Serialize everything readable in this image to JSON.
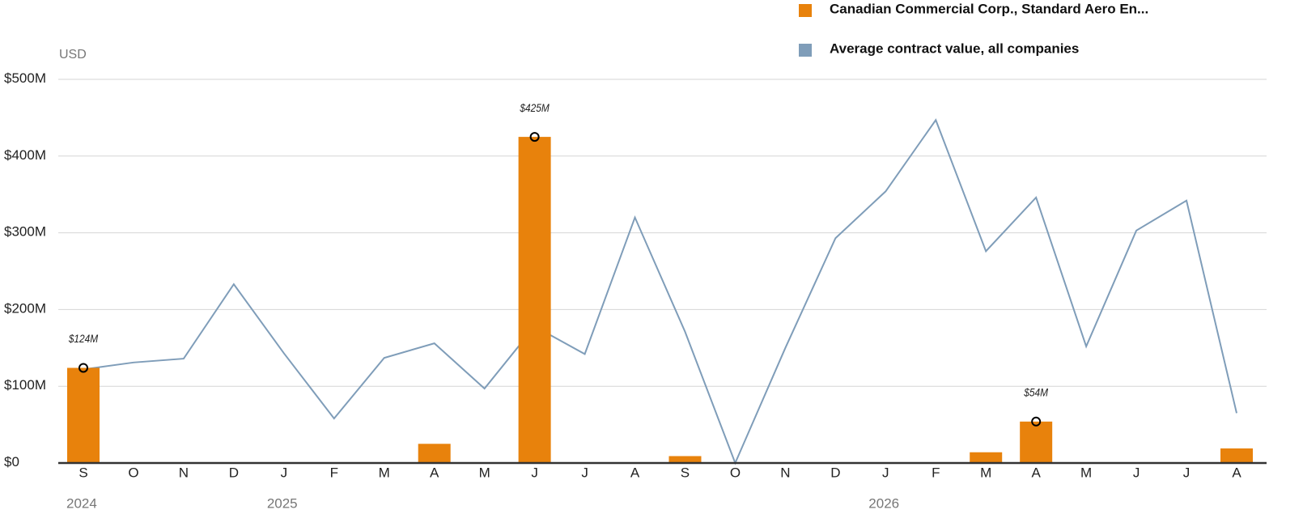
{
  "chart_data": {
    "type": "bar_line",
    "y_unit_label": "USD",
    "categories": [
      "S",
      "O",
      "N",
      "D",
      "J",
      "F",
      "M",
      "A",
      "M",
      "J",
      "J",
      "A",
      "S",
      "O",
      "N",
      "D",
      "J",
      "F",
      "M",
      "A",
      "M",
      "J",
      "J",
      "A"
    ],
    "years": [
      "2024",
      null,
      null,
      null,
      "2025",
      null,
      null,
      null,
      null,
      null,
      null,
      null,
      null,
      null,
      null,
      null,
      "2026",
      null,
      null,
      null,
      null,
      null,
      null,
      null
    ],
    "series": [
      {
        "name": "Canadian Commercial Corp., Standard Aero En...",
        "color": "#e8820c",
        "kind": "bar",
        "values": [
          124,
          null,
          null,
          null,
          null,
          null,
          null,
          25,
          null,
          425,
          null,
          null,
          9,
          null,
          null,
          null,
          null,
          null,
          14,
          54,
          null,
          null,
          null,
          19
        ],
        "value_labels": [
          "$124M",
          null,
          null,
          null,
          null,
          null,
          null,
          null,
          null,
          "$425M",
          null,
          null,
          null,
          null,
          null,
          null,
          null,
          null,
          null,
          "$54M",
          null,
          null,
          null,
          null
        ]
      },
      {
        "name": "Average contract value, all companies",
        "color": "#7f9db9",
        "kind": "line",
        "values": [
          122,
          131,
          136,
          233,
          143,
          58,
          137,
          156,
          97,
          178,
          142,
          320,
          171,
          0,
          150,
          293,
          354,
          447,
          276,
          346,
          152,
          303,
          342,
          65
        ]
      }
    ],
    "ylim": [
      0,
      500
    ],
    "yticks": [
      {
        "value": 0,
        "label": "$0"
      },
      {
        "value": 100,
        "label": "$100M"
      },
      {
        "value": 200,
        "label": "$200M"
      },
      {
        "value": 300,
        "label": "$300M"
      },
      {
        "value": 400,
        "label": "$400M"
      },
      {
        "value": 500,
        "label": "$500M"
      }
    ],
    "grid": true
  }
}
